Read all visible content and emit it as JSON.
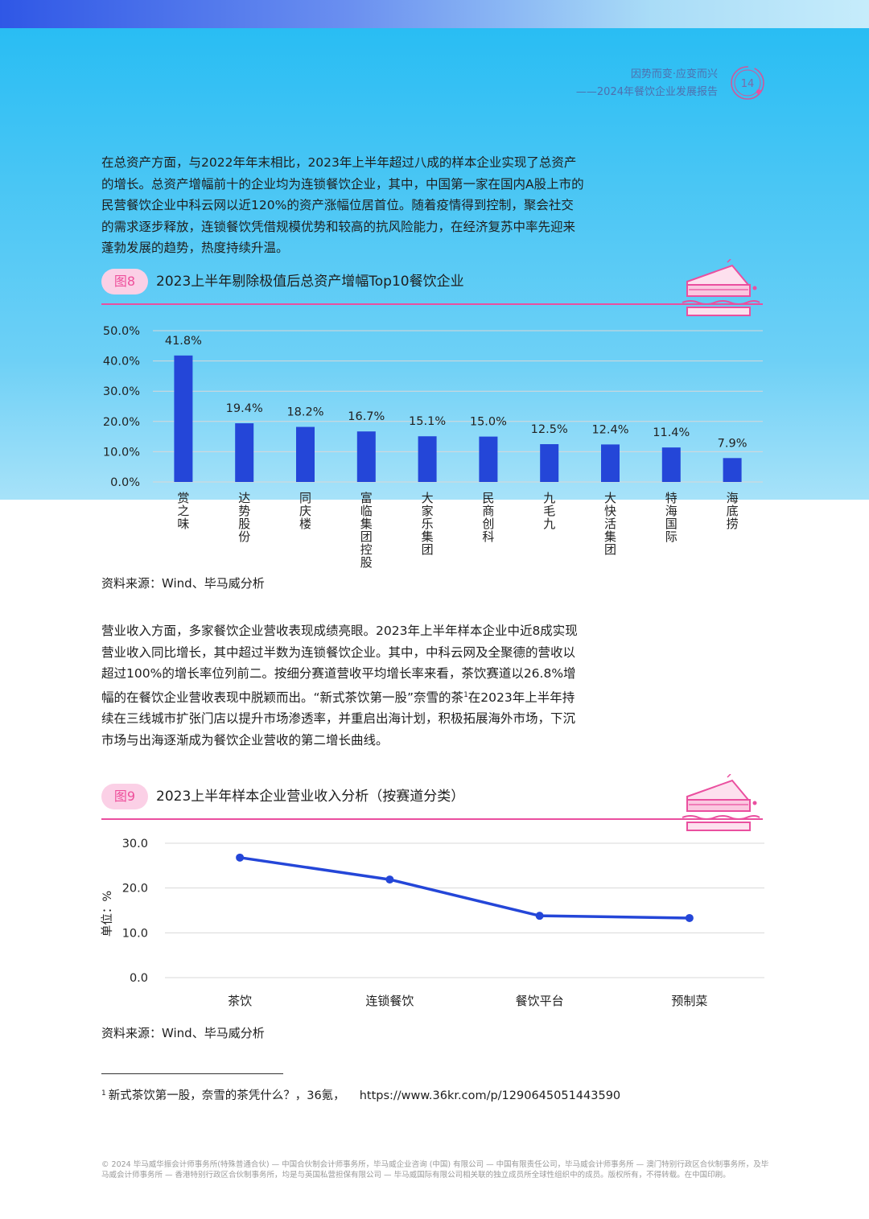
{
  "header": {
    "line1": "因势而变·应变而兴",
    "line2": "——2024年餐饮企业发展报告",
    "page_number": "14"
  },
  "paragraph1": "在总资产方面，与2022年年末相比，2023年上半年超过八成的样本企业实现了总资产的增长。总资产增幅前十的企业均为连锁餐饮企业，其中，中国第一家在国内A股上市的民营餐饮企业中科云网以近120%的资产涨幅位居首位。随着疫情得到控制，聚会社交的需求逐步释放，连锁餐饮凭借规模优势和较高的抗风险能力，在经济复苏中率先迎来蓬勃发展的趋势，热度持续升温。",
  "figure8": {
    "badge": "图8",
    "title": "2023上半年剔除极值后总资产增幅Top10餐饮企业",
    "source": "资料来源：Wind、毕马威分析"
  },
  "paragraph2": "营业收入方面，多家餐饮企业营收表现成绩亮眼。2023年上半年样本企业中近8成实现营业收入同比增长，其中超过半数为连锁餐饮企业。其中，中科云网及全聚德的营收以超过100%的增长率位列前二。按细分赛道营收平均增长率来看，茶饮赛道以26.8%增幅的在餐饮企业营收表现中脱颖而出。“新式茶饮第一股”奈雪的茶",
  "paragraph2_sup": "1",
  "paragraph2_tail": "在2023年上半年持续在三线城市扩张门店以提升市场渗透率，并重启出海计划，积极拓展海外市场，下沉市场与出海逐渐成为餐饮企业营收的第二增长曲线。",
  "figure9": {
    "badge": "图9",
    "title": "2023上半年样本企业营业收入分析（按赛道分类）",
    "source": "资料来源：Wind、毕马威分析"
  },
  "footnote": {
    "marker": "1",
    "text": "新式茶饮第一股，奈雪的茶凭什么？，36氪，",
    "url": "https://www.36kr.com/p/1290645051443590"
  },
  "copyright": "© 2024 毕马威华振会计师事务所(特殊普通合伙) — 中国合伙制会计师事务所，毕马威企业咨询 (中国) 有限公司 — 中国有限责任公司，毕马威会计师事务所 — 澳门特别行政区合伙制事务所，及毕马威会计师事务所 — 香港特别行政区合伙制事务所，均是与英国私营担保有限公司 — 毕马威国际有限公司相关联的独立成员所全球性组织中的成员。版权所有，不得转载。在中国印刷。",
  "colors": {
    "bar": "#2446d8",
    "line": "#2446d8",
    "accent_pink": "#ea4f9f"
  },
  "chart_data": [
    {
      "type": "bar",
      "categories": [
        "赏之味",
        "达势股份",
        "同庆楼",
        "富临集团控股",
        "大家乐集团",
        "民商创科",
        "九毛九",
        "大快活集团",
        "特海国际",
        "海底捞"
      ],
      "values": [
        41.8,
        19.4,
        18.2,
        16.7,
        15.1,
        15.0,
        12.5,
        12.4,
        11.4,
        7.9
      ],
      "data_labels": [
        "41.8%",
        "19.4%",
        "18.2%",
        "16.7%",
        "15.1%",
        "15.0%",
        "12.5%",
        "12.4%",
        "11.4%",
        "7.9%"
      ],
      "y_ticks": [
        "0.0%",
        "10.0%",
        "20.0%",
        "30.0%",
        "40.0%",
        "50.0%"
      ],
      "ylim": [
        0,
        50
      ],
      "grid": true,
      "title": "2023上半年剔除极值后总资产增幅Top10餐饮企业"
    },
    {
      "type": "line",
      "categories": [
        "茶饮",
        "连锁餐饮",
        "餐饮平台",
        "预制菜"
      ],
      "values": [
        26.8,
        21.9,
        13.8,
        13.3
      ],
      "y_ticks": [
        "0.0",
        "10.0",
        "20.0",
        "30.0"
      ],
      "ylim": [
        0,
        30
      ],
      "ylabel": "单位：%",
      "grid": true,
      "title": "2023上半年样本企业营业收入分析（按赛道分类）"
    }
  ]
}
